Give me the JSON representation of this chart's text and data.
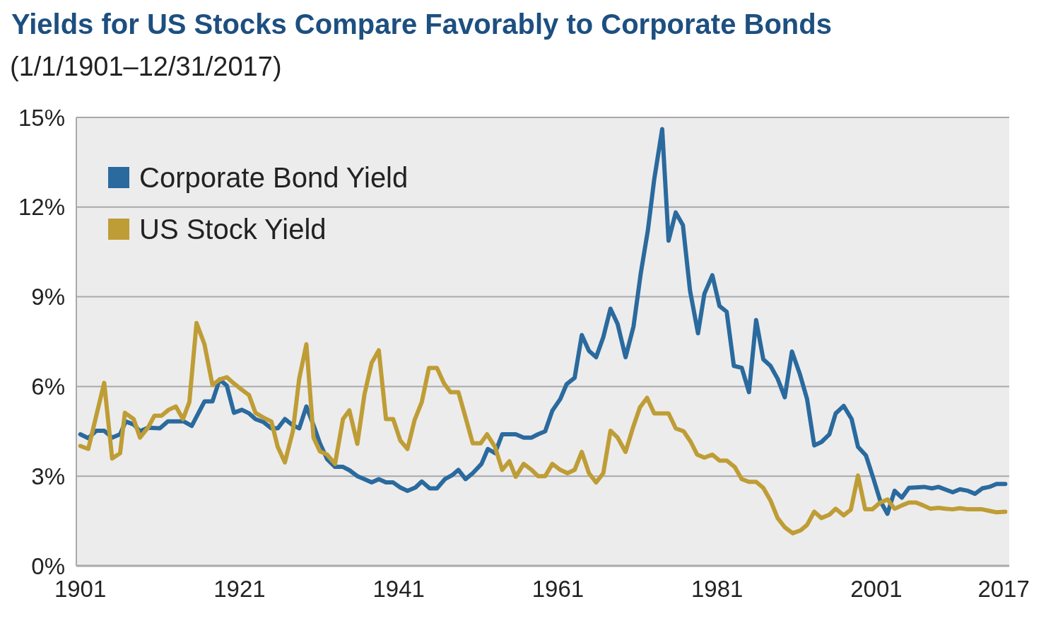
{
  "chart_data": {
    "type": "line",
    "title": "Yields for US Stocks Compare Favorably to Corporate Bonds",
    "subtitle": "(1/1/1901–12/31/2017)",
    "xlim": [
      1900.5,
      2017.7
    ],
    "xticks": [
      1901,
      1921,
      1941,
      1961,
      1981,
      2001,
      2017
    ],
    "ylim": [
      0,
      15
    ],
    "yticks": [
      {
        "value": 0,
        "label": "0%"
      },
      {
        "value": 3,
        "label": "3%"
      },
      {
        "value": 6,
        "label": "6%"
      },
      {
        "value": 9,
        "label": "9%"
      },
      {
        "value": 12,
        "label": "12%"
      },
      {
        "value": 15,
        "label": "15%"
      }
    ],
    "grid": "y",
    "legend": "top left",
    "line_style": "solid",
    "marker": "none",
    "series": [
      {
        "name": "Corporate Bond Yield",
        "color": "#2a6a9e",
        "x": [
          1901,
          1902,
          1903,
          1904,
          1905,
          1906,
          1906.7,
          1907.7,
          1908.5,
          1909.5,
          1911,
          1912,
          1914,
          1915,
          1916.6,
          1917.6,
          1918.5,
          1919.4,
          1920.3,
          1921.3,
          1922.2,
          1923,
          1924,
          1925,
          1925.8,
          1926.7,
          1927.7,
          1928.5,
          1929.4,
          1930.3,
          1931.1,
          1932,
          1933,
          1934,
          1934.8,
          1935.8,
          1936.7,
          1937.6,
          1938.5,
          1939.4,
          1940.3,
          1941.2,
          1942.1,
          1943.1,
          1943.9,
          1944.9,
          1945.8,
          1946.8,
          1947.7,
          1948.5,
          1949.4,
          1950.3,
          1951.4,
          1952.2,
          1953.1,
          1954,
          1955.7,
          1956.7,
          1957.7,
          1958.5,
          1959.4,
          1960.3,
          1961.3,
          1962.1,
          1963.1,
          1964,
          1964.9,
          1965.8,
          1966.7,
          1967.6,
          1968.5,
          1969.5,
          1970.5,
          1971.4,
          1972.3,
          1973.1,
          1974.1,
          1974.9,
          1975.8,
          1976.7,
          1977.6,
          1978.6,
          1979.4,
          1980.4,
          1981.3,
          1982.2,
          1983.1,
          1984.1,
          1985,
          1985.9,
          1986.8,
          1987.7,
          1988.6,
          1989.5,
          1990.4,
          1991.4,
          1992.3,
          1993.2,
          1994.1,
          1995.1,
          1995.9,
          1996.9,
          1997.9,
          1998.7,
          1999.7,
          2000.6,
          2001.5,
          2002.4,
          2003.3,
          2004.2,
          2005.1,
          2007,
          2008,
          2008.8,
          2010.6,
          2011.5,
          2012.5,
          2013.4,
          2014.3,
          2015.2,
          2016.1,
          2017.2
        ],
        "values": [
          4.4,
          4.27,
          4.52,
          4.52,
          4.29,
          4.4,
          4.83,
          4.73,
          4.5,
          4.62,
          4.6,
          4.83,
          4.83,
          4.68,
          5.5,
          5.5,
          6.23,
          6.03,
          5.12,
          5.22,
          5.1,
          4.91,
          4.81,
          4.6,
          4.6,
          4.91,
          4.7,
          4.6,
          5.33,
          4.7,
          4.1,
          3.57,
          3.31,
          3.31,
          3.2,
          3.0,
          2.9,
          2.79,
          2.9,
          2.79,
          2.79,
          2.62,
          2.51,
          2.62,
          2.82,
          2.59,
          2.59,
          2.9,
          3.03,
          3.21,
          2.9,
          3.1,
          3.41,
          3.91,
          3.77,
          4.4,
          4.4,
          4.29,
          4.29,
          4.4,
          4.5,
          5.19,
          5.58,
          6.08,
          6.29,
          7.72,
          7.19,
          6.98,
          7.65,
          8.6,
          8.09,
          6.98,
          8.01,
          9.77,
          11.22,
          12.93,
          14.61,
          10.88,
          11.82,
          11.4,
          9.2,
          7.78,
          9.1,
          9.72,
          8.69,
          8.5,
          6.69,
          6.62,
          5.81,
          8.22,
          6.91,
          6.69,
          6.26,
          5.64,
          7.17,
          6.41,
          5.58,
          4.03,
          4.14,
          4.4,
          5.1,
          5.35,
          4.91,
          3.98,
          3.69,
          2.95,
          2.17,
          1.74,
          2.51,
          2.28,
          2.61,
          2.64,
          2.59,
          2.64,
          2.46,
          2.56,
          2.51,
          2.41,
          2.59,
          2.64,
          2.74,
          2.74
        ]
      },
      {
        "name": "US Stock Yield",
        "color": "#bf9d36",
        "x": [
          1901,
          1902,
          1904,
          1905,
          1906,
          1906.6,
          1907.7,
          1908.5,
          1909.5,
          1910.3,
          1911.2,
          1912.1,
          1913,
          1913.9,
          1914.7,
          1915.6,
          1916.6,
          1917.6,
          1918.5,
          1919.4,
          1920.3,
          1921.3,
          1922.2,
          1923,
          1924,
          1925,
          1925.8,
          1926.7,
          1927.7,
          1928.5,
          1929.4,
          1930.3,
          1931.1,
          1932,
          1933,
          1934,
          1934.8,
          1935.8,
          1936.7,
          1937.6,
          1938.5,
          1939.4,
          1940.3,
          1941.2,
          1942.1,
          1943,
          1943.9,
          1944.8,
          1945.8,
          1946.7,
          1947.5,
          1948.5,
          1949.4,
          1950.3,
          1951.3,
          1952.1,
          1953.1,
          1954,
          1954.9,
          1955.7,
          1956.7,
          1957.7,
          1958.5,
          1959.4,
          1960.3,
          1961.3,
          1962.2,
          1963.1,
          1964,
          1964.9,
          1965.8,
          1966.7,
          1967.6,
          1968.5,
          1969.5,
          1970.4,
          1971.3,
          1972.2,
          1973.1,
          1974.9,
          1975.8,
          1976.8,
          1977.7,
          1978.5,
          1979.4,
          1980.4,
          1981.3,
          1982.2,
          1983.2,
          1984.1,
          1985,
          1985.9,
          1986.8,
          1987.7,
          1988.6,
          1989.5,
          1990.5,
          1991.5,
          1992.3,
          1993.2,
          1994.1,
          1995.1,
          1995.9,
          1996.9,
          1997.8,
          1998.7,
          1999.6,
          2000.5,
          2001.5,
          2002.4,
          2003.3,
          2004.2,
          2005.1,
          2006,
          2006.9,
          2007.8,
          2008.8,
          2009.7,
          2010.6,
          2011.5,
          2012.5,
          2014.3,
          2015.2,
          2016.1,
          2017.2
        ],
        "values": [
          4.01,
          3.91,
          6.12,
          3.59,
          3.77,
          5.12,
          4.91,
          4.29,
          4.62,
          5.02,
          5.02,
          5.22,
          5.33,
          4.91,
          5.48,
          8.12,
          7.41,
          6.05,
          6.23,
          6.31,
          6.1,
          5.89,
          5.71,
          5.12,
          4.96,
          4.83,
          3.98,
          3.46,
          4.5,
          6.26,
          7.41,
          4.29,
          3.83,
          3.72,
          3.41,
          4.91,
          5.2,
          4.08,
          5.74,
          6.79,
          7.21,
          4.91,
          4.91,
          4.19,
          3.91,
          4.88,
          5.48,
          6.62,
          6.62,
          6.1,
          5.81,
          5.81,
          4.96,
          4.1,
          4.1,
          4.4,
          3.98,
          3.21,
          3.5,
          2.98,
          3.41,
          3.21,
          3.0,
          3.0,
          3.41,
          3.21,
          3.1,
          3.21,
          3.81,
          3.1,
          2.79,
          3.1,
          4.52,
          4.29,
          3.81,
          4.6,
          5.3,
          5.62,
          5.1,
          5.1,
          4.6,
          4.5,
          4.14,
          3.72,
          3.62,
          3.72,
          3.52,
          3.52,
          3.31,
          2.9,
          2.81,
          2.81,
          2.61,
          2.19,
          1.6,
          1.29,
          1.09,
          1.19,
          1.37,
          1.81,
          1.6,
          1.71,
          1.91,
          1.69,
          1.88,
          3.02,
          1.89,
          1.89,
          2.12,
          2.22,
          1.91,
          2.02,
          2.12,
          2.12,
          2.02,
          1.91,
          1.94,
          1.91,
          1.89,
          1.93,
          1.89,
          1.89,
          1.84,
          1.79,
          1.81
        ]
      }
    ]
  }
}
